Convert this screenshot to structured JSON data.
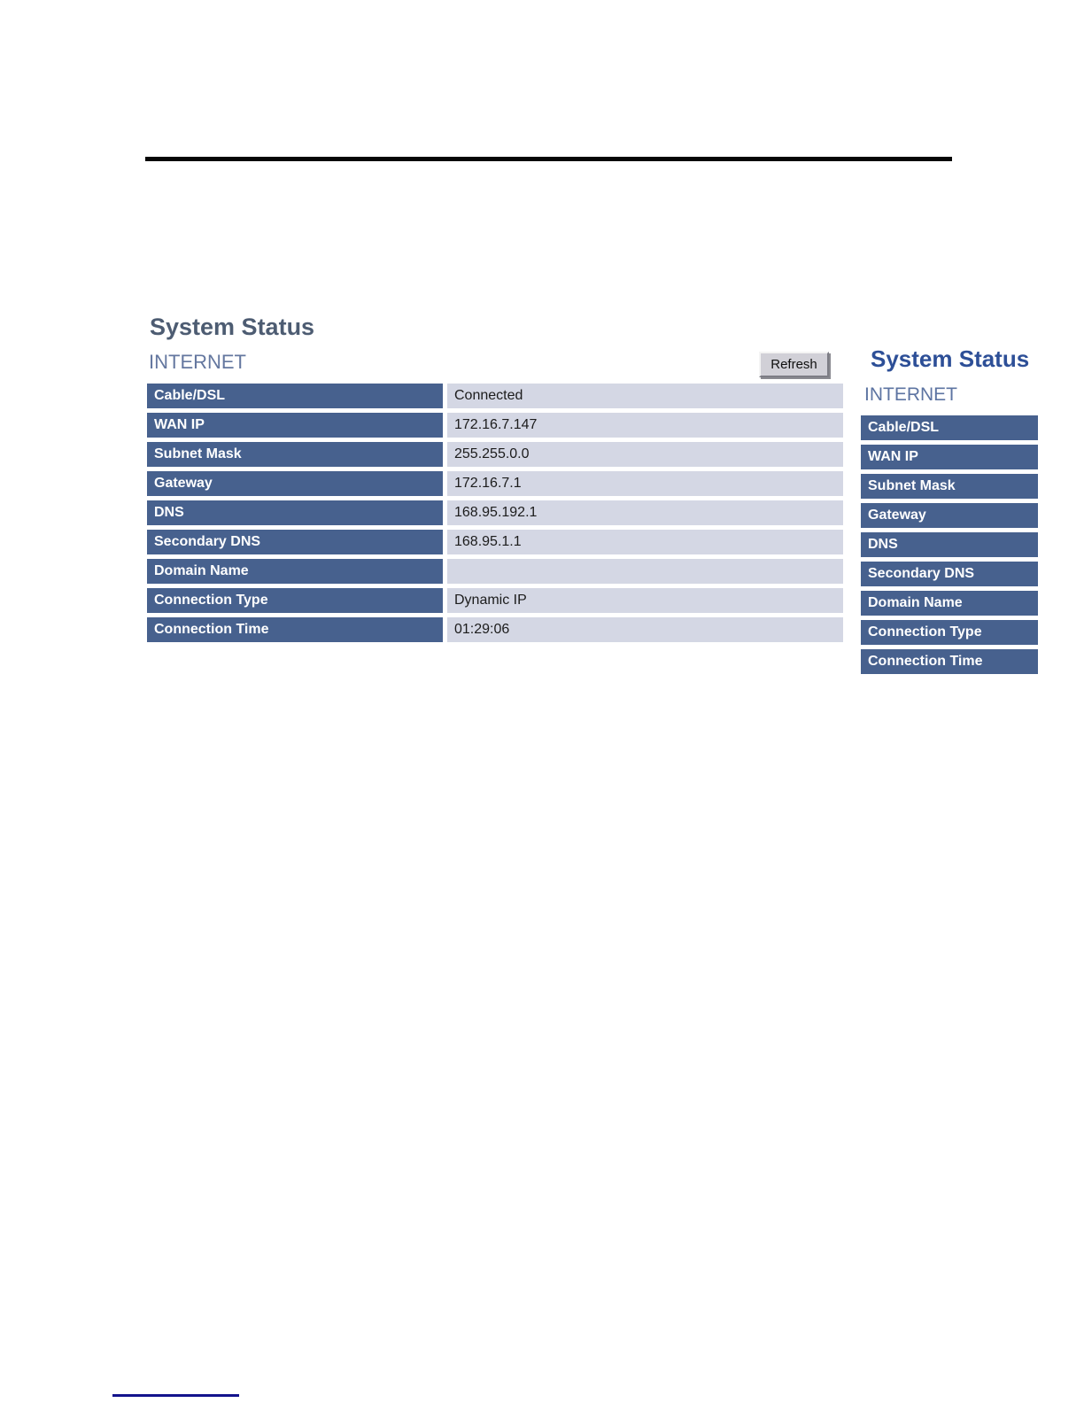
{
  "main": {
    "title": "System Status",
    "section_label": "INTERNET",
    "refresh_button_label": "Refresh",
    "table": {
      "rows": [
        {
          "label": "Cable/DSL",
          "value": "Connected"
        },
        {
          "label": "WAN IP",
          "value": "172.16.7.147"
        },
        {
          "label": "Subnet Mask",
          "value": "255.255.0.0"
        },
        {
          "label": "Gateway",
          "value": "172.16.7.1"
        },
        {
          "label": "DNS",
          "value": "168.95.192.1"
        },
        {
          "label": "Secondary DNS",
          "value": "168.95.1.1"
        },
        {
          "label": "Domain Name",
          "value": ""
        },
        {
          "label": "Connection Type",
          "value": "Dynamic IP"
        },
        {
          "label": "Connection Time",
          "value": "01:29:06"
        }
      ]
    }
  },
  "sidebar": {
    "title": "System Status",
    "section_label": "INTERNET",
    "items": [
      "Cable/DSL",
      "WAN IP",
      "Subnet Mask",
      "Gateway",
      "DNS",
      "Secondary DNS",
      "Domain Name",
      "Connection Type",
      "Connection Time"
    ]
  },
  "colors": {
    "table_header_blue": "#47618e",
    "table_value_bg": "#d4d7e4",
    "main_title_color": "#4d5c72",
    "section_label_color": "#64779f",
    "sidebar_title_blue": "#2d4f97",
    "top_rule_black": "#060606",
    "footer_line_navy": "#13138c",
    "button_face": "#d1d0d7"
  }
}
